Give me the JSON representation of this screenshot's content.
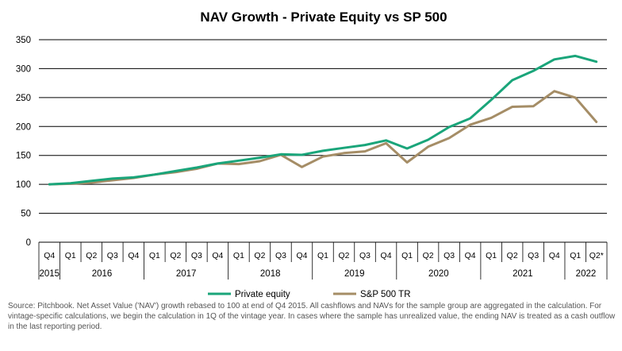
{
  "chart_data": {
    "type": "line",
    "title": "NAV Growth - Private Equity vs SP 500",
    "xlabel": "",
    "ylabel": "",
    "ylim": [
      0,
      350
    ],
    "yticks": [
      0,
      50,
      100,
      150,
      200,
      250,
      300,
      350
    ],
    "grid": true,
    "legend": "bottom",
    "categories": [
      "Q4",
      "Q1",
      "Q2",
      "Q3",
      "Q4",
      "Q1",
      "Q2",
      "Q3",
      "Q4",
      "Q1",
      "Q2",
      "Q3",
      "Q4",
      "Q1",
      "Q2",
      "Q3",
      "Q4",
      "Q1",
      "Q2",
      "Q3",
      "Q4",
      "Q1",
      "Q2",
      "Q3",
      "Q4",
      "Q1",
      "Q2*"
    ],
    "years": [
      {
        "label": "2015",
        "count": 1
      },
      {
        "label": "2016",
        "count": 4
      },
      {
        "label": "2017",
        "count": 4
      },
      {
        "label": "2018",
        "count": 4
      },
      {
        "label": "2019",
        "count": 4
      },
      {
        "label": "2020",
        "count": 4
      },
      {
        "label": "2021",
        "count": 4
      },
      {
        "label": "2022",
        "count": 2
      }
    ],
    "series": [
      {
        "name": "Private equity",
        "color": "#1aa57a",
        "values": [
          100,
          102,
          106,
          110,
          112,
          117,
          123,
          129,
          136,
          141,
          146,
          152,
          151,
          158,
          163,
          168,
          176,
          162,
          177,
          199,
          214,
          246,
          280,
          296,
          316,
          322,
          312
        ]
      },
      {
        "name": "S&P 500 TR",
        "color": "#a58d66",
        "values": [
          100,
          101,
          103,
          107,
          111,
          117,
          121,
          127,
          136,
          135,
          140,
          151,
          130,
          148,
          154,
          157,
          171,
          138,
          165,
          180,
          203,
          215,
          234,
          235,
          261,
          250,
          208
        ]
      }
    ]
  },
  "source_note": "Source: Pitchbook. Net Asset Value ('NAV') growth rebased to 100 at end of Q4 2015. All cashflows and NAVs for the sample group are aggregated in the calculation. For vintage-specific calculations, we begin the calculation in 1Q of the vintage year. In cases where the sample has unrealized value, the ending NAV is treated as a cash outflow in the last reporting period."
}
